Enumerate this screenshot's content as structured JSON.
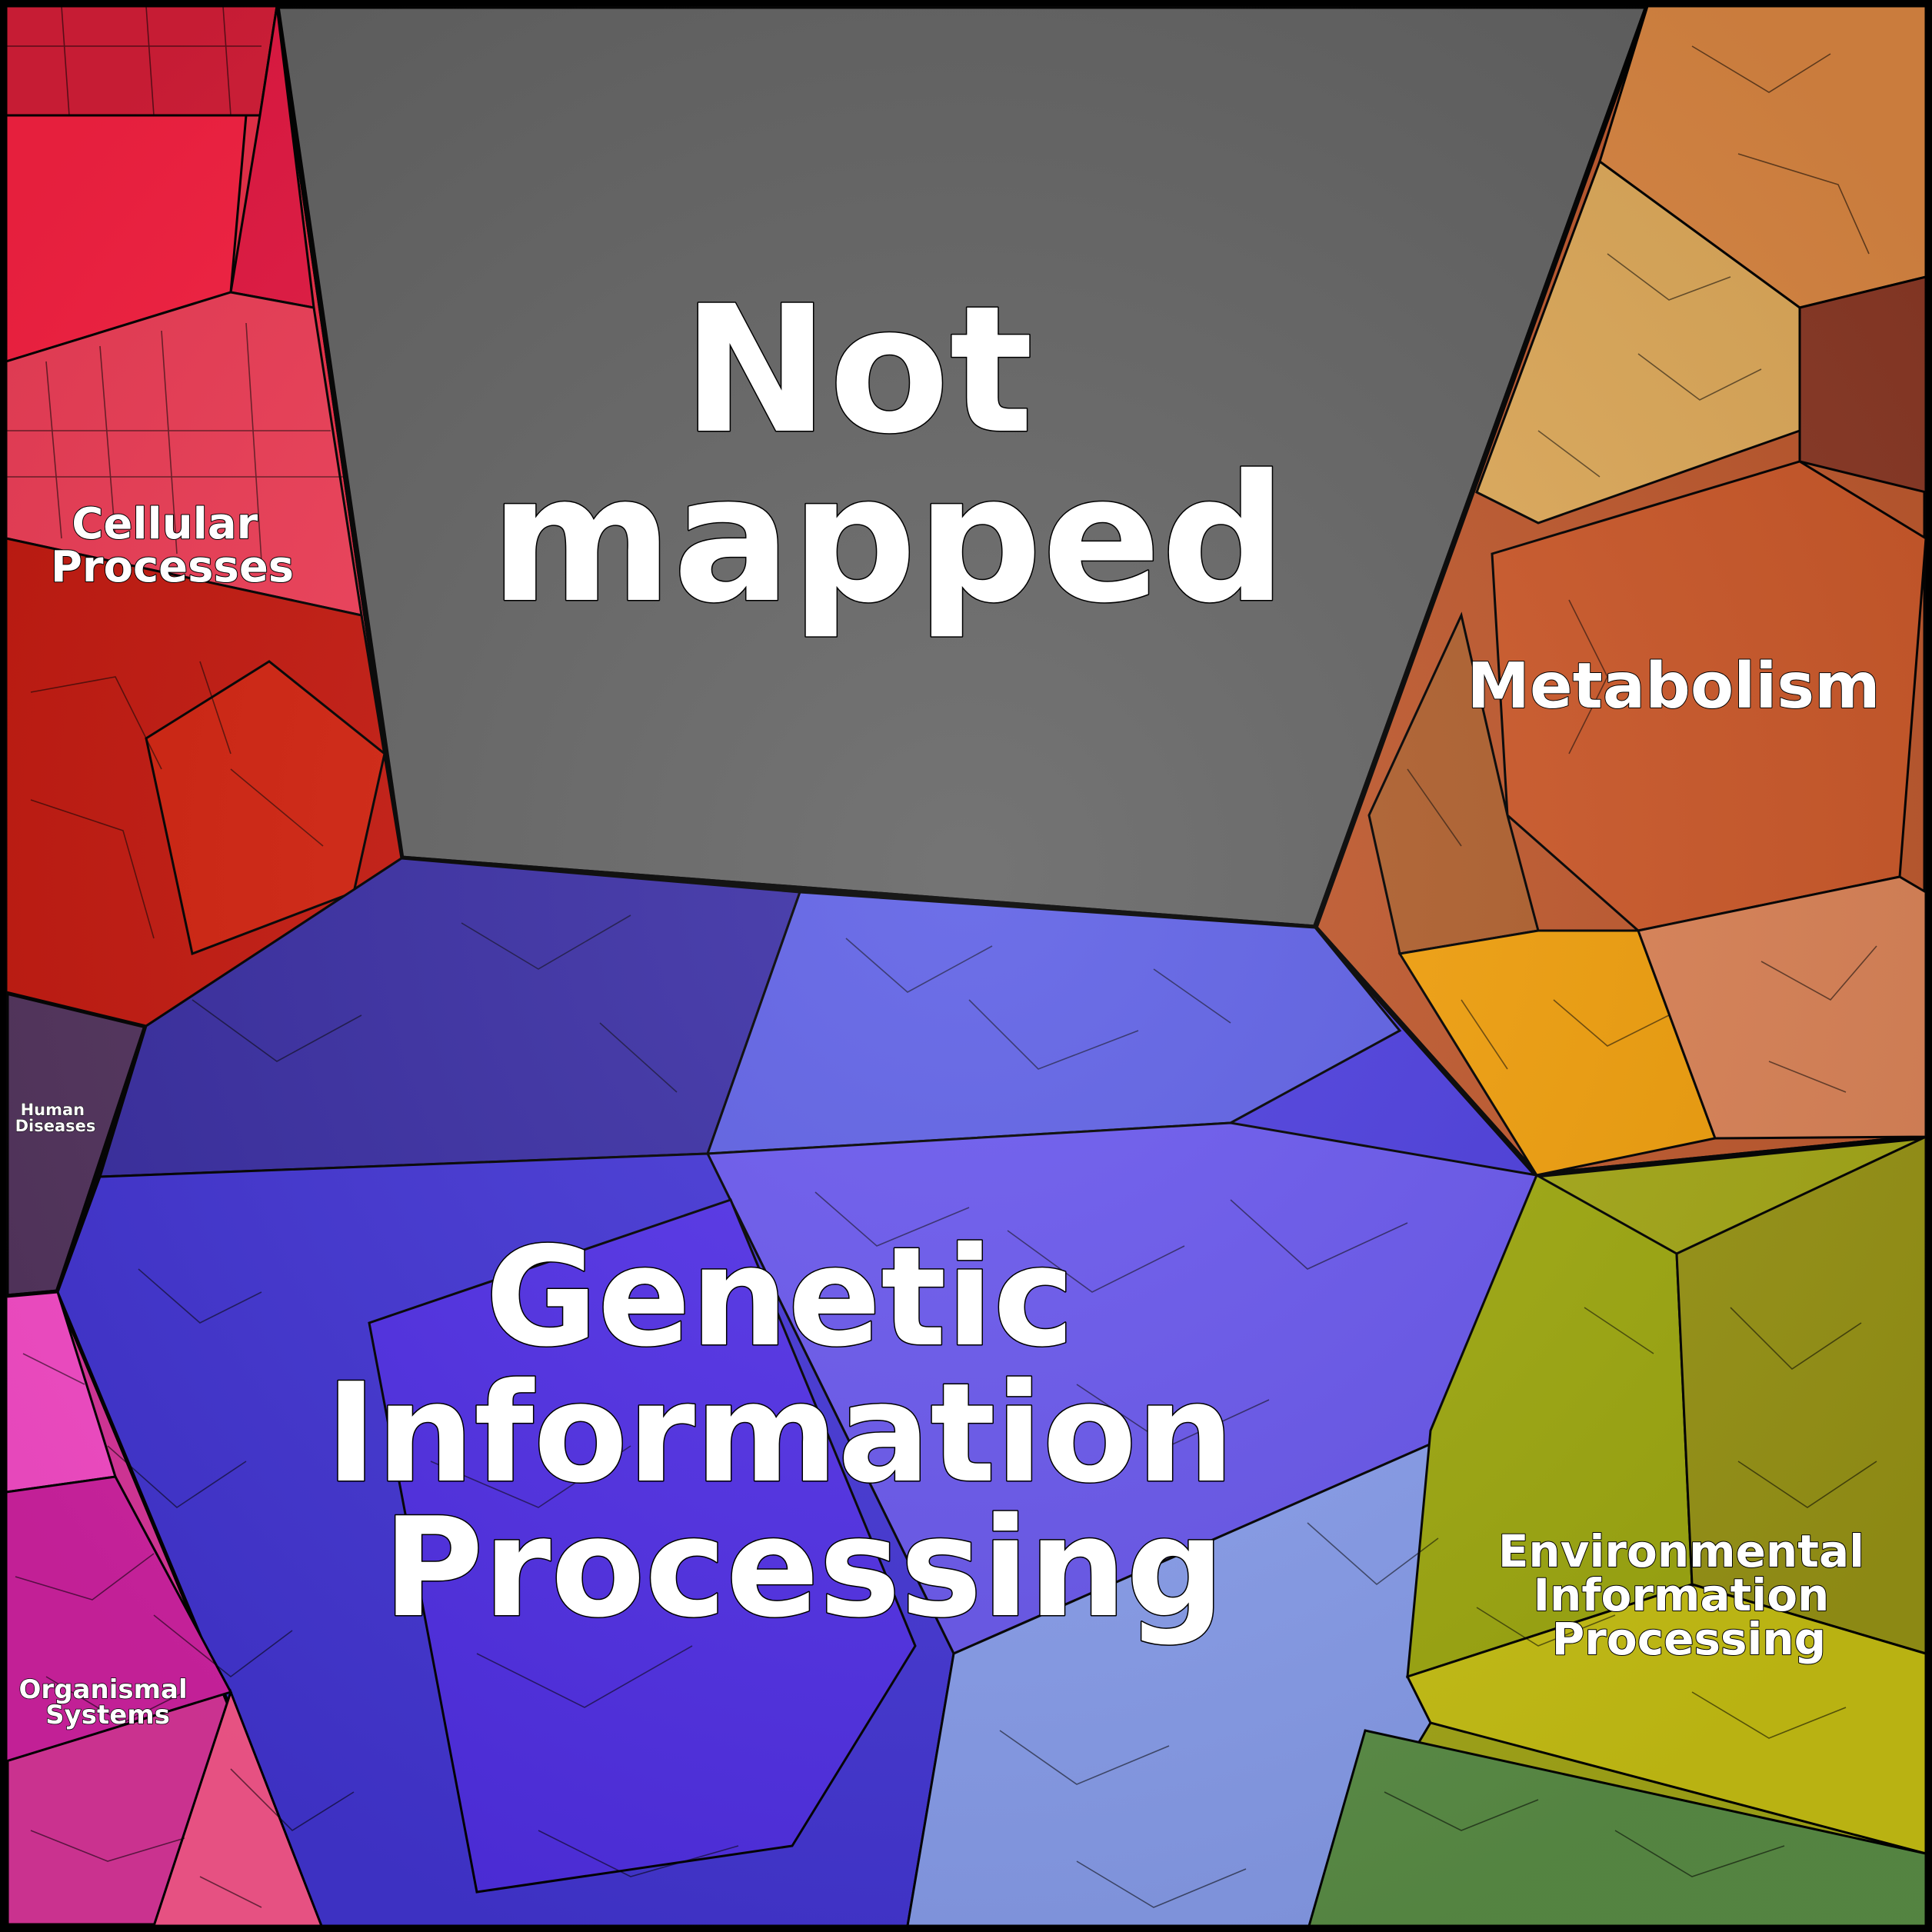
{
  "diagram": {
    "type": "voronoi-treemap",
    "regions": [
      {
        "id": "not-mapped",
        "lines": [
          "Not",
          "mapped"
        ],
        "color": "#656565"
      },
      {
        "id": "cellular",
        "lines": [
          "Cellular",
          "Processes"
        ],
        "color": "#f5304f"
      },
      {
        "id": "metabolism",
        "lines": [
          "Metabolism"
        ],
        "color": "#c4532a"
      },
      {
        "id": "genetic",
        "lines": [
          "Genetic",
          "Information",
          "Processing"
        ],
        "color": "#4f3fe6"
      },
      {
        "id": "human",
        "lines": [
          "Human",
          "Diseases"
        ],
        "color": "#5a3a62"
      },
      {
        "id": "environmental",
        "lines": [
          "Environmental",
          "Information",
          "Processing"
        ],
        "color": "#a9ad14"
      },
      {
        "id": "organismal",
        "lines": [
          "Organismal",
          "Systems"
        ],
        "color": "#e23cb8"
      }
    ]
  }
}
